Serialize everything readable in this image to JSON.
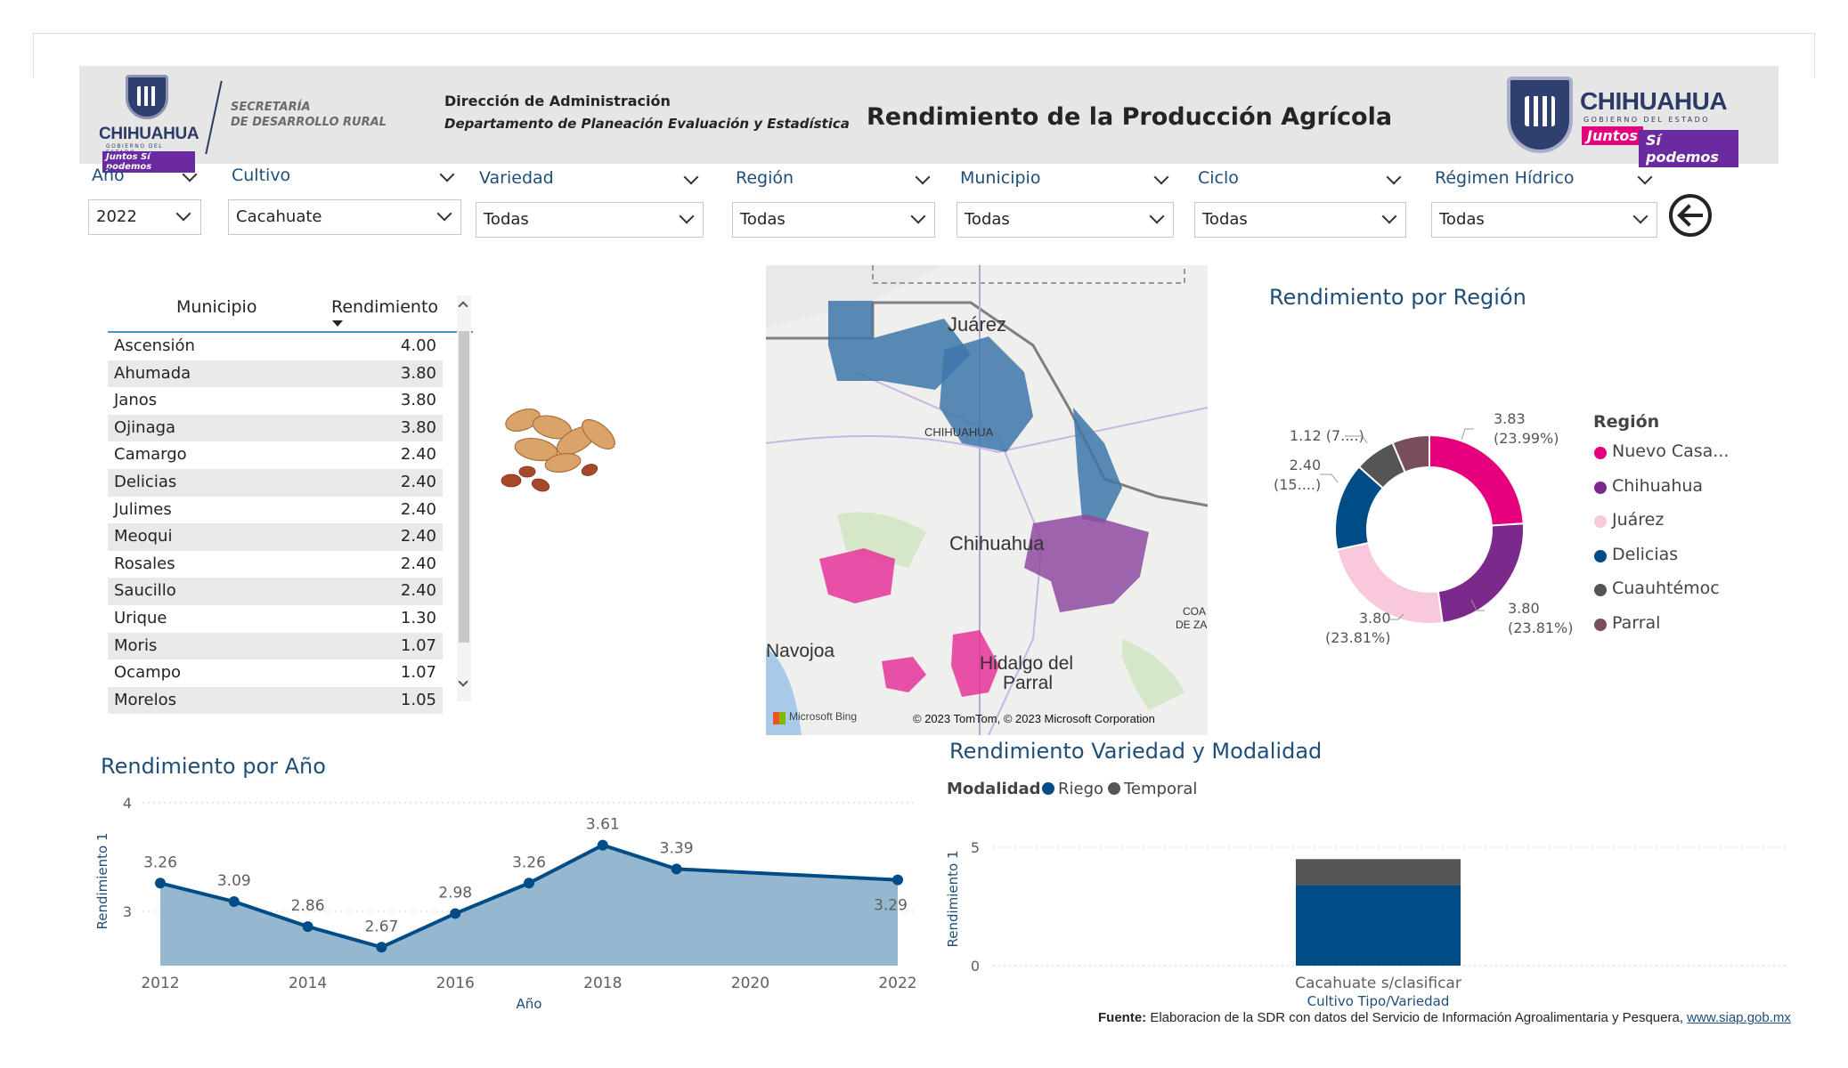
{
  "header": {
    "logo_left_word": "CHIHUAHUA",
    "logo_left_gob": "GOBIERNO DEL ESTADO",
    "logo_left_juntos": "Juntos Sí podemos",
    "secretaria_line1": "SECRETARÍA",
    "secretaria_line2": "DE DESARROLLO RURAL",
    "direccion": "Dirección de Administración",
    "departamento": "Departamento de Planeación Evaluación y Estadística",
    "title": "Rendimiento de la Producción Agrícola",
    "logo_right_word": "CHIHUAHUA",
    "logo_right_gob": "GOBIERNO DEL ESTADO",
    "logo_right_juntos": "Juntos",
    "logo_right_sipodemos": "Sí podemos"
  },
  "filters": [
    {
      "label": "Año",
      "value": "2022"
    },
    {
      "label": "Cultivo",
      "value": "Cacahuate"
    },
    {
      "label": "Variedad",
      "value": "Todas"
    },
    {
      "label": "Región",
      "value": "Todas"
    },
    {
      "label": "Municipio",
      "value": "Todas"
    },
    {
      "label": "Ciclo",
      "value": "Todas"
    },
    {
      "label": "Régimen Hídrico",
      "value": "Todas"
    }
  ],
  "table": {
    "col_municipio": "Municipio",
    "col_rendimiento": "Rendimiento",
    "rows": [
      {
        "municipio": "Ascensión",
        "rendimiento": "4.00"
      },
      {
        "municipio": "Ahumada",
        "rendimiento": "3.80"
      },
      {
        "municipio": "Janos",
        "rendimiento": "3.80"
      },
      {
        "municipio": "Ojinaga",
        "rendimiento": "3.80"
      },
      {
        "municipio": "Camargo",
        "rendimiento": "2.40"
      },
      {
        "municipio": "Delicias",
        "rendimiento": "2.40"
      },
      {
        "municipio": "Julimes",
        "rendimiento": "2.40"
      },
      {
        "municipio": "Meoqui",
        "rendimiento": "2.40"
      },
      {
        "municipio": "Rosales",
        "rendimiento": "2.40"
      },
      {
        "municipio": "Saucillo",
        "rendimiento": "2.40"
      },
      {
        "municipio": "Urique",
        "rendimiento": "1.30"
      },
      {
        "municipio": "Moris",
        "rendimiento": "1.07"
      },
      {
        "municipio": "Ocampo",
        "rendimiento": "1.07"
      },
      {
        "municipio": "Morelos",
        "rendimiento": "1.05"
      }
    ]
  },
  "map": {
    "labels": {
      "juarez": "Juárez",
      "chihuahua_small": "CHIHUAHUA",
      "chihuahua": "Chihuahua",
      "navojoa": "Navojoa",
      "hidalgo": "Hidalgo del",
      "parral": "Parral",
      "coa": "COA",
      "deza": "DE ZA"
    },
    "attribution": "© 2023 TomTom, © 2023 Microsoft Corporation",
    "bing": "Microsoft Bing"
  },
  "region_chart": {
    "title": "Rendimiento por Región",
    "legend_title": "Región",
    "labels": {
      "nuevo_casas": [
        "3.83",
        "(23.99%)"
      ],
      "chihuahua": [
        "3.80",
        "(23.81%)"
      ],
      "juarez": [
        "3.80",
        "(23.81%)"
      ],
      "delicias": [
        "2.40",
        "(15....)"
      ],
      "cuauhtemoc": [
        "1.12 (7....)"
      ]
    }
  },
  "year_chart": {
    "title": "Rendimiento por Año",
    "ylabel": "Rendimiento 1",
    "xlabel": "Año",
    "y_ticks": [
      "4",
      "3"
    ],
    "x_ticks": [
      "2012",
      "2014",
      "2016",
      "2018",
      "2020",
      "2022"
    ]
  },
  "variety_chart": {
    "title": "Rendimiento Variedad y Modalidad",
    "legend_title": "Modalidad",
    "legend": [
      {
        "name": "Riego",
        "color": "#004c87"
      },
      {
        "name": "Temporal",
        "color": "#555555"
      }
    ],
    "ylabel": "Rendimiento 1",
    "xlabel": "Cultivo Tipo/Variedad",
    "y_ticks": [
      "5",
      "0"
    ]
  },
  "fuente": {
    "label": "Fuente:",
    "text": " Elaboracion de la SDR con datos del Servicio de Información Agroalimentaria y Pesquera, ",
    "link": "www.siap.gob.mx"
  },
  "chart_data": [
    {
      "type": "pie",
      "title": "Rendimiento por Región",
      "categories": [
        "Nuevo Casa...",
        "Chihuahua",
        "Juárez",
        "Delicias",
        "Cuauhtémoc",
        "Parral"
      ],
      "values": [
        3.83,
        3.8,
        3.8,
        2.4,
        1.12,
        1.02
      ],
      "colors": [
        "#e6007e",
        "#7b2a8c",
        "#f8c8dc",
        "#004c87",
        "#555555",
        "#7a4e5c"
      ],
      "legend": "right"
    },
    {
      "type": "area",
      "title": "Rendimiento por Año",
      "xlabel": "Año",
      "ylabel": "Rendimiento 1",
      "x": [
        2012,
        2013,
        2014,
        2015,
        2016,
        2017,
        2018,
        2019,
        2022
      ],
      "values": [
        3.26,
        3.09,
        2.86,
        2.67,
        2.98,
        3.26,
        3.61,
        3.39,
        3.29
      ],
      "ylim": [
        2.5,
        4
      ],
      "grid": true
    },
    {
      "type": "bar",
      "title": "Rendimiento Variedad y Modalidad",
      "xlabel": "Cultivo Tipo/Variedad",
      "ylabel": "Rendimiento 1",
      "categories": [
        "Cacahuate s/clasificar"
      ],
      "series": [
        {
          "name": "Riego",
          "values": [
            3.4
          ]
        },
        {
          "name": "Temporal",
          "values": [
            1.1
          ]
        }
      ],
      "stacked": true,
      "ylim": [
        0,
        5
      ],
      "grid": true
    }
  ]
}
